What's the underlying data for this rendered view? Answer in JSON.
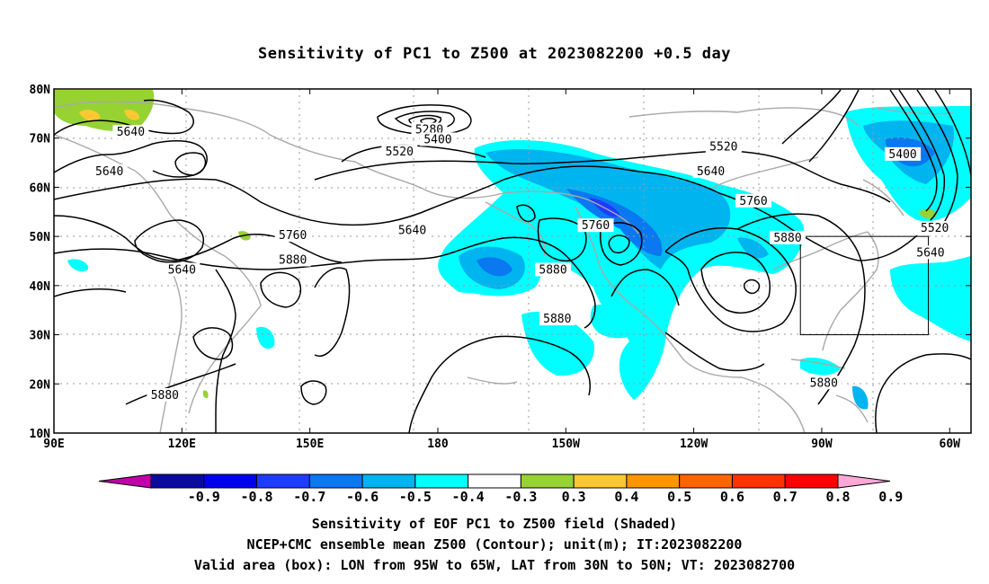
{
  "title": "Sensitivity of PC1 to Z500 at 2023082200 +0.5 day",
  "map": {
    "lon_labels": [
      "90E",
      "120E",
      "150E",
      "180",
      "150W",
      "120W",
      "90W",
      "60W"
    ],
    "lat_labels": [
      "80N",
      "70N",
      "60N",
      "50N",
      "40N",
      "30N",
      "20N",
      "10N"
    ],
    "contour_labels": [
      {
        "text": "5640",
        "lon": 108,
        "lat": 71
      },
      {
        "text": "5640",
        "lon": 103,
        "lat": 63
      },
      {
        "text": "5280",
        "lon": 178,
        "lat": 71.5
      },
      {
        "text": "5400",
        "lon": 180,
        "lat": 69.5
      },
      {
        "text": "5520",
        "lon": 171,
        "lat": 67
      },
      {
        "text": "5400",
        "lon": -71,
        "lat": 66.5
      },
      {
        "text": "5520",
        "lon": -113,
        "lat": 68
      },
      {
        "text": "5640",
        "lon": -116,
        "lat": 63
      },
      {
        "text": "5760",
        "lon": -143,
        "lat": 52
      },
      {
        "text": "5640",
        "lon": 174,
        "lat": 51
      },
      {
        "text": "5760",
        "lon": 146,
        "lat": 50
      },
      {
        "text": "5880",
        "lon": 146,
        "lat": 45
      },
      {
        "text": "5640",
        "lon": 120,
        "lat": 43
      },
      {
        "text": "5880",
        "lon": -153,
        "lat": 43
      },
      {
        "text": "5760",
        "lon": -106,
        "lat": 57
      },
      {
        "text": "5880",
        "lon": -98,
        "lat": 49.5
      },
      {
        "text": "5520",
        "lon": -63.5,
        "lat": 51.5
      },
      {
        "text": "5640",
        "lon": -64.5,
        "lat": 46.5
      },
      {
        "text": "5880",
        "lon": -152,
        "lat": 33
      },
      {
        "text": "5880",
        "lon": 116,
        "lat": 17.5
      },
      {
        "text": "5880",
        "lon": -89.5,
        "lat": 20
      }
    ],
    "valid_box": {
      "lon_min": -95,
      "lon_max": -65,
      "lat_min": 30,
      "lat_max": 50
    }
  },
  "colorbar": {
    "labels": [
      "-0.9",
      "-0.8",
      "-0.7",
      "-0.6",
      "-0.5",
      "-0.4",
      "-0.3",
      "0.3",
      "0.4",
      "0.5",
      "0.6",
      "0.7",
      "0.8",
      "0.9"
    ],
    "colors": [
      "#0a0aa0",
      "#0000f0",
      "#1e3cff",
      "#0a78f0",
      "#00b4f0",
      "#00ffff",
      "#ffffff",
      "#96d232",
      "#ffc832",
      "#ff9600",
      "#ff6400",
      "#ff3200",
      "#ff0000"
    ],
    "low_end_color": "#c000a8",
    "high_end_color": "#ffa8d8"
  },
  "captions": {
    "line1": "Sensitivity of EOF PC1 to Z500 field (Shaded)",
    "line2": "NCEP+CMC ensemble mean Z500 (Contour); unit(m); IT:2023082200",
    "line3": "Valid area (box): LON from 95W to 65W, LAT from 30N to 50N; VT: 2023082700"
  }
}
